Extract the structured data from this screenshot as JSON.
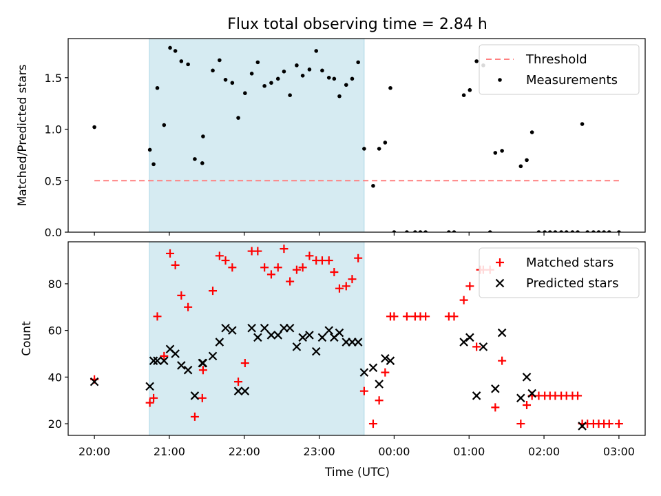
{
  "figure": {
    "title": "Flux total observing time = 2.84 h",
    "xlabel": "Time (UTC)",
    "xticks": [
      "20:00",
      "21:00",
      "22:00",
      "23:00",
      "00:00",
      "01:00",
      "02:00",
      "03:00"
    ],
    "shaded_span": [
      "20:44",
      "23:36"
    ],
    "shade_color": "#add8e6"
  },
  "chart_data": [
    {
      "type": "scatter",
      "ylabel": "Matched/Predicted stars",
      "xlim": [
        -0.35,
        7.35
      ],
      "ylim": [
        0,
        1.88
      ],
      "yticks": [
        "0.0",
        "0.5",
        "1.0",
        "1.5"
      ],
      "threshold": {
        "name": "Threshold",
        "value": 0.5,
        "x_start": 0,
        "x_end": 7.0,
        "color": "#ff8080",
        "style": "dashed"
      },
      "series": [
        {
          "name": "Measurements",
          "color": "#000000",
          "marker": "dot",
          "points": [
            [
              0.0,
              1.02
            ],
            [
              0.74,
              0.8
            ],
            [
              0.79,
              0.66
            ],
            [
              0.84,
              1.4
            ],
            [
              0.93,
              1.04
            ],
            [
              1.01,
              1.79
            ],
            [
              1.08,
              1.76
            ],
            [
              1.16,
              1.66
            ],
            [
              1.25,
              1.63
            ],
            [
              1.34,
              0.71
            ],
            [
              1.44,
              0.67
            ],
            [
              1.45,
              0.93
            ],
            [
              1.58,
              1.57
            ],
            [
              1.67,
              1.67
            ],
            [
              1.75,
              1.48
            ],
            [
              1.84,
              1.45
            ],
            [
              1.92,
              1.11
            ],
            [
              2.01,
              1.35
            ],
            [
              2.1,
              1.54
            ],
            [
              2.18,
              1.65
            ],
            [
              2.27,
              1.42
            ],
            [
              2.36,
              1.45
            ],
            [
              2.45,
              1.49
            ],
            [
              2.53,
              1.56
            ],
            [
              2.61,
              1.33
            ],
            [
              2.7,
              1.62
            ],
            [
              2.78,
              1.52
            ],
            [
              2.87,
              1.58
            ],
            [
              2.96,
              1.76
            ],
            [
              3.04,
              1.57
            ],
            [
              3.13,
              1.5
            ],
            [
              3.2,
              1.49
            ],
            [
              3.27,
              1.32
            ],
            [
              3.36,
              1.43
            ],
            [
              3.44,
              1.49
            ],
            [
              3.52,
              1.65
            ],
            [
              3.6,
              0.81
            ],
            [
              3.72,
              0.45
            ],
            [
              3.8,
              0.81
            ],
            [
              3.88,
              0.87
            ],
            [
              3.95,
              1.4
            ],
            [
              4.0,
              0.0
            ],
            [
              4.17,
              0.0
            ],
            [
              4.28,
              0.0
            ],
            [
              4.35,
              0.0
            ],
            [
              4.42,
              0.0
            ],
            [
              4.73,
              0.0
            ],
            [
              4.8,
              0.0
            ],
            [
              4.93,
              1.33
            ],
            [
              5.01,
              1.38
            ],
            [
              5.1,
              1.66
            ],
            [
              5.19,
              1.62
            ],
            [
              5.28,
              0.0
            ],
            [
              5.35,
              0.77
            ],
            [
              5.44,
              0.79
            ],
            [
              5.69,
              0.64
            ],
            [
              5.77,
              0.7
            ],
            [
              5.84,
              0.97
            ],
            [
              5.93,
              0.0
            ],
            [
              6.01,
              0.0
            ],
            [
              6.08,
              0.0
            ],
            [
              6.15,
              0.0
            ],
            [
              6.23,
              0.0
            ],
            [
              6.3,
              0.0
            ],
            [
              6.38,
              0.0
            ],
            [
              6.45,
              0.0
            ],
            [
              6.51,
              1.05
            ],
            [
              6.58,
              0.0
            ],
            [
              6.66,
              0.0
            ],
            [
              6.73,
              0.0
            ],
            [
              6.8,
              0.0
            ],
            [
              6.87,
              0.0
            ],
            [
              7.0,
              0.0
            ]
          ]
        }
      ],
      "legend": "top-right"
    },
    {
      "type": "scatter",
      "ylabel": "Count",
      "xlim": [
        -0.35,
        7.35
      ],
      "ylim": [
        15,
        98
      ],
      "yticks": [
        "20",
        "40",
        "60",
        "80"
      ],
      "series": [
        {
          "name": "Matched stars",
          "color": "#ff0000",
          "marker": "plus",
          "points": [
            [
              0.0,
              39
            ],
            [
              0.74,
              29
            ],
            [
              0.79,
              31
            ],
            [
              0.84,
              66
            ],
            [
              0.93,
              49
            ],
            [
              1.01,
              93
            ],
            [
              1.08,
              88
            ],
            [
              1.16,
              75
            ],
            [
              1.25,
              70
            ],
            [
              1.34,
              23
            ],
            [
              1.44,
              31
            ],
            [
              1.45,
              43
            ],
            [
              1.58,
              77
            ],
            [
              1.67,
              92
            ],
            [
              1.75,
              90
            ],
            [
              1.84,
              87
            ],
            [
              1.92,
              38
            ],
            [
              2.01,
              46
            ],
            [
              2.1,
              94
            ],
            [
              2.18,
              94
            ],
            [
              2.27,
              87
            ],
            [
              2.36,
              84
            ],
            [
              2.45,
              87
            ],
            [
              2.53,
              95
            ],
            [
              2.61,
              81
            ],
            [
              2.7,
              86
            ],
            [
              2.78,
              87
            ],
            [
              2.87,
              92
            ],
            [
              2.96,
              90
            ],
            [
              3.04,
              90
            ],
            [
              3.13,
              90
            ],
            [
              3.2,
              85
            ],
            [
              3.27,
              78
            ],
            [
              3.36,
              79
            ],
            [
              3.44,
              82
            ],
            [
              3.52,
              91
            ],
            [
              3.6,
              34
            ],
            [
              3.72,
              20
            ],
            [
              3.8,
              30
            ],
            [
              3.88,
              42
            ],
            [
              3.95,
              66
            ],
            [
              4.0,
              66
            ],
            [
              4.17,
              66
            ],
            [
              4.28,
              66
            ],
            [
              4.35,
              66
            ],
            [
              4.42,
              66
            ],
            [
              4.73,
              66
            ],
            [
              4.8,
              66
            ],
            [
              4.93,
              73
            ],
            [
              5.01,
              79
            ],
            [
              5.1,
              53
            ],
            [
              5.15,
              86
            ],
            [
              5.19,
              86
            ],
            [
              5.28,
              86
            ],
            [
              5.35,
              27
            ],
            [
              5.44,
              47
            ],
            [
              5.69,
              20
            ],
            [
              5.77,
              28
            ],
            [
              5.84,
              32
            ],
            [
              5.93,
              32
            ],
            [
              6.01,
              32
            ],
            [
              6.08,
              32
            ],
            [
              6.15,
              32
            ],
            [
              6.23,
              32
            ],
            [
              6.3,
              32
            ],
            [
              6.38,
              32
            ],
            [
              6.45,
              32
            ],
            [
              6.51,
              20
            ],
            [
              6.58,
              20
            ],
            [
              6.66,
              20
            ],
            [
              6.73,
              20
            ],
            [
              6.8,
              20
            ],
            [
              6.87,
              20
            ],
            [
              7.0,
              20
            ]
          ]
        },
        {
          "name": "Predicted stars",
          "color": "#000000",
          "marker": "x",
          "points": [
            [
              0.0,
              38
            ],
            [
              0.74,
              36
            ],
            [
              0.79,
              47
            ],
            [
              0.84,
              47
            ],
            [
              0.93,
              47
            ],
            [
              1.01,
              52
            ],
            [
              1.08,
              50
            ],
            [
              1.16,
              45
            ],
            [
              1.25,
              43
            ],
            [
              1.34,
              32
            ],
            [
              1.44,
              46
            ],
            [
              1.45,
              46
            ],
            [
              1.58,
              49
            ],
            [
              1.67,
              55
            ],
            [
              1.75,
              61
            ],
            [
              1.84,
              60
            ],
            [
              1.92,
              34
            ],
            [
              2.01,
              34
            ],
            [
              2.1,
              61
            ],
            [
              2.18,
              57
            ],
            [
              2.27,
              61
            ],
            [
              2.36,
              58
            ],
            [
              2.45,
              58
            ],
            [
              2.53,
              61
            ],
            [
              2.61,
              61
            ],
            [
              2.7,
              53
            ],
            [
              2.78,
              57
            ],
            [
              2.87,
              58
            ],
            [
              2.96,
              51
            ],
            [
              3.04,
              57
            ],
            [
              3.13,
              60
            ],
            [
              3.2,
              57
            ],
            [
              3.27,
              59
            ],
            [
              3.36,
              55
            ],
            [
              3.44,
              55
            ],
            [
              3.52,
              55
            ],
            [
              3.6,
              42
            ],
            [
              3.72,
              44
            ],
            [
              3.8,
              37
            ],
            [
              3.88,
              48
            ],
            [
              3.95,
              47
            ],
            [
              4.93,
              55
            ],
            [
              5.01,
              57
            ],
            [
              5.1,
              32
            ],
            [
              5.19,
              53
            ],
            [
              5.35,
              35
            ],
            [
              5.44,
              59
            ],
            [
              5.69,
              31
            ],
            [
              5.77,
              40
            ],
            [
              5.84,
              33
            ],
            [
              6.51,
              19
            ]
          ]
        }
      ],
      "legend": "top-right"
    }
  ]
}
